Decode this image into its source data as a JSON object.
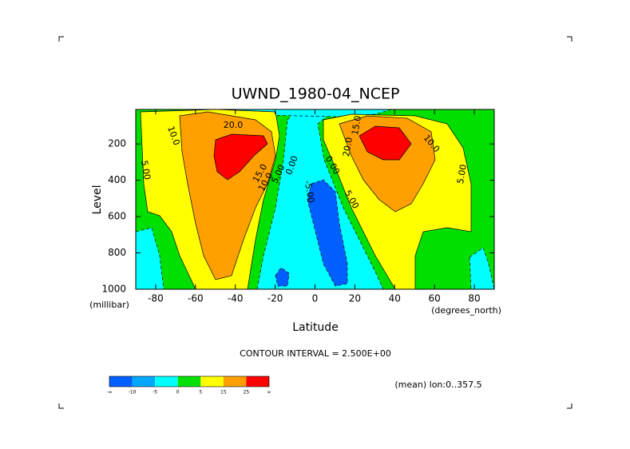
{
  "chart_data": {
    "type": "contour",
    "title": "UWND_1980-04_NCEP",
    "x_label": "Latitude",
    "x_units": "(degrees_north)",
    "y_label": "Level",
    "y_units": "(millibar)",
    "xlim": [
      -90,
      90
    ],
    "xticks": [
      -80,
      -60,
      -40,
      -20,
      0,
      20,
      40,
      60,
      80
    ],
    "ylim": [
      1000,
      10
    ],
    "yticks": [
      200,
      400,
      600,
      800,
      1000
    ],
    "contour_note": "CONTOUR INTERVAL = 2.500E+00",
    "region_note": "(mean) lon:0..357.5",
    "contour_labels": [
      "10.0",
      "20.0",
      "5.00",
      "15.0",
      "10.0",
      "5.00",
      "0.00",
      "-5.00",
      "0.00",
      "5.00",
      "15.0",
      "20.0",
      "10.0",
      "5.00"
    ],
    "colorbar": {
      "labels": [
        "-∞",
        "-10",
        "-5",
        "0",
        "5",
        "15",
        "25",
        "∞"
      ],
      "colors": [
        "#0060ff",
        "#00a8ff",
        "#00ffff",
        "#00e000",
        "#ffff00",
        "#ffa000",
        "#ff0000"
      ]
    }
  }
}
